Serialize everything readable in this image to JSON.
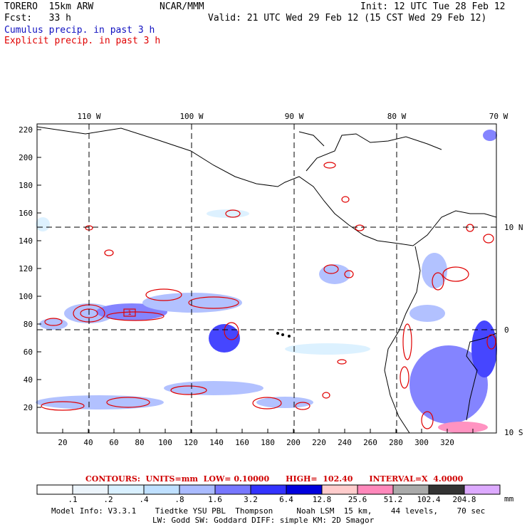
{
  "header": {
    "model": "TORERO  15km ARW",
    "org": "NCAR/MMM",
    "init": "Init: 12 UTC Tue 28 Feb 12",
    "fcst": "Fcst:   33 h",
    "valid": "Valid: 21 UTC Wed 29 Feb 12 (15 CST Wed 29 Feb 12)",
    "field1": "Cumulus precip. in past 3 h",
    "field2": "Explicit precip. in past 3 h",
    "field1_color": "#1010c0",
    "field2_color": "#e00000"
  },
  "map": {
    "top_lon_labels": [
      "110 W",
      "100 W",
      "90 W",
      "80 W",
      "70 W"
    ],
    "right_lat_labels": [
      "10 N",
      "0",
      "10 S"
    ],
    "left_y_ticks": [
      "220",
      "200",
      "180",
      "160",
      "140",
      "120",
      "100",
      "80",
      "60",
      "40",
      "20"
    ],
    "bottom_x_ticks": [
      "20",
      "40",
      "60",
      "80",
      "100",
      "120",
      "140",
      "160",
      "180",
      "200",
      "220",
      "240",
      "260",
      "280",
      "300",
      "320"
    ],
    "hi_marker": "1"
  },
  "contour_info": "CONTOURS:  UNITS=mm  LOW= 0.10000      HIGH=  102.40      INTERVAL=X  4.0000",
  "colorbar": {
    "labels": [
      ".1",
      ".2",
      ".4",
      ".8",
      "1.6",
      "3.2",
      "6.4",
      "12.8",
      "25.6",
      "51.2",
      "102.4",
      "204.8"
    ],
    "unit": "mm",
    "colors": [
      "#ffffff",
      "#ecf4fb",
      "#d9f0ff",
      "#bfe0ff",
      "#aabbff",
      "#7777ff",
      "#3333ff",
      "#0000dd",
      "#ffcccc",
      "#ff88bb",
      "#aaaaaa",
      "#333333",
      "#ddaaff"
    ]
  },
  "model_info": {
    "line1": "Model Info: V3.3.1    Tiedtke YSU PBL  Thompson     Noah LSM  15 km,    44 levels,    70 sec",
    "line2": "LW: Godd SW: Goddard DIFF: simple KM: 2D Smagor"
  }
}
